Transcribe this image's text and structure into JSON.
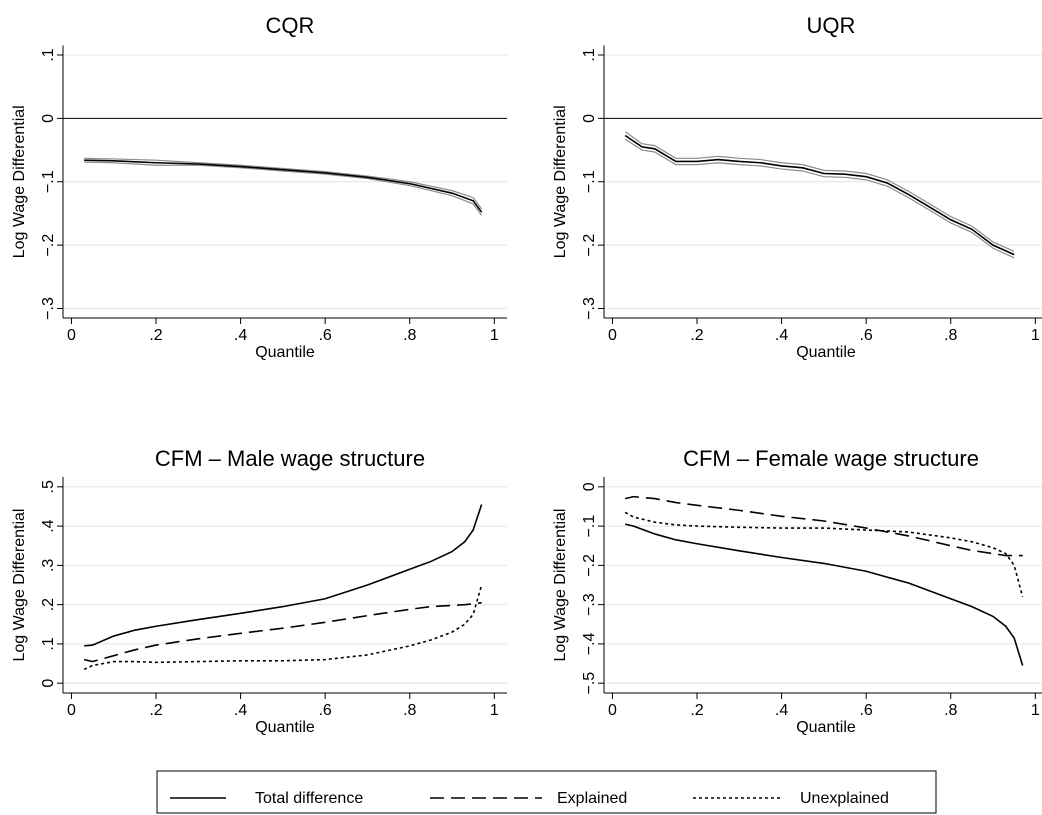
{
  "chart_data": [
    {
      "type": "line",
      "title": "CQR",
      "xlabel": "Quantile",
      "ylabel": "Log Wage Differential",
      "x": [
        0.03,
        0.1,
        0.2,
        0.3,
        0.4,
        0.5,
        0.6,
        0.7,
        0.8,
        0.9,
        0.95,
        0.97
      ],
      "series": [
        {
          "color": "#8c8c8c",
          "linestyle": "solid",
          "values": [
            -0.063,
            -0.064,
            -0.066,
            -0.07,
            -0.074,
            -0.079,
            -0.084,
            -0.091,
            -0.1,
            -0.114,
            -0.125,
            -0.143
          ]
        },
        {
          "color": "#8c8c8c",
          "linestyle": "solid",
          "values": [
            -0.069,
            -0.07,
            -0.074,
            -0.074,
            -0.078,
            -0.083,
            -0.088,
            -0.095,
            -0.106,
            -0.122,
            -0.135,
            -0.153
          ]
        },
        {
          "color": "#000000",
          "linestyle": "solid",
          "values": [
            -0.066,
            -0.067,
            -0.07,
            -0.072,
            -0.076,
            -0.081,
            -0.086,
            -0.093,
            -0.103,
            -0.118,
            -0.13,
            -0.148
          ]
        }
      ],
      "xlim": [
        -0.02,
        1.03
      ],
      "ylim": [
        -0.315,
        0.115
      ],
      "xticks": [
        0,
        {
          "value": 0.2,
          "label": ".2"
        },
        {
          "value": 0.4,
          "label": ".4"
        },
        {
          "value": 0.6,
          "label": ".6"
        },
        {
          "value": 0.8,
          "label": ".8"
        },
        1
      ],
      "yticks": [
        {
          "value": -0.3,
          "label": "−.3"
        },
        {
          "value": -0.2,
          "label": "−.2"
        },
        {
          "value": -0.1,
          "label": "−.1"
        },
        0,
        {
          "value": 0.1,
          "label": ".1"
        }
      ],
      "hline": 0,
      "grid": true
    },
    {
      "type": "line",
      "title": "UQR",
      "xlabel": "Quantile",
      "ylabel": "Log Wage Differential",
      "x": [
        0.03,
        0.07,
        0.1,
        0.15,
        0.2,
        0.25,
        0.3,
        0.35,
        0.4,
        0.45,
        0.5,
        0.55,
        0.6,
        0.65,
        0.7,
        0.75,
        0.8,
        0.85,
        0.9,
        0.95
      ],
      "series": [
        {
          "color": "#8c8c8c",
          "linestyle": "solid",
          "values": [
            -0.021,
            -0.04,
            -0.043,
            -0.063,
            -0.063,
            -0.06,
            -0.063,
            -0.065,
            -0.07,
            -0.073,
            -0.082,
            -0.083,
            -0.087,
            -0.097,
            -0.115,
            -0.135,
            -0.155,
            -0.17,
            -0.195,
            -0.21
          ]
        },
        {
          "color": "#8c8c8c",
          "linestyle": "solid",
          "values": [
            -0.033,
            -0.05,
            -0.053,
            -0.073,
            -0.073,
            -0.07,
            -0.073,
            -0.075,
            -0.08,
            -0.083,
            -0.092,
            -0.093,
            -0.097,
            -0.107,
            -0.125,
            -0.145,
            -0.165,
            -0.18,
            -0.205,
            -0.22
          ]
        },
        {
          "color": "#000000",
          "linestyle": "solid",
          "values": [
            -0.027,
            -0.045,
            -0.048,
            -0.068,
            -0.068,
            -0.065,
            -0.068,
            -0.07,
            -0.075,
            -0.078,
            -0.087,
            -0.088,
            -0.092,
            -0.102,
            -0.12,
            -0.14,
            -0.16,
            -0.175,
            -0.2,
            -0.215
          ]
        }
      ],
      "xlim": [
        -0.02,
        1.03
      ],
      "ylim": [
        -0.315,
        0.115
      ],
      "xticks": [
        0,
        {
          "value": 0.2,
          "label": ".2"
        },
        {
          "value": 0.4,
          "label": ".4"
        },
        {
          "value": 0.6,
          "label": ".6"
        },
        {
          "value": 0.8,
          "label": ".8"
        },
        1
      ],
      "yticks": [
        {
          "value": -0.3,
          "label": "−.3"
        },
        {
          "value": -0.2,
          "label": "−.2"
        },
        {
          "value": -0.1,
          "label": "−.1"
        },
        0,
        {
          "value": 0.1,
          "label": ".1"
        }
      ],
      "hline": 0,
      "grid": true
    },
    {
      "type": "line",
      "title": "CFM – Male wage structure",
      "xlabel": "Quantile",
      "ylabel": "Log Wage Differential",
      "x": [
        0.03,
        0.05,
        0.1,
        0.15,
        0.2,
        0.3,
        0.4,
        0.5,
        0.6,
        0.7,
        0.8,
        0.85,
        0.9,
        0.93,
        0.95,
        0.97
      ],
      "series": [
        {
          "name": "Total difference",
          "color": "#000000",
          "linestyle": "solid",
          "values": [
            0.095,
            0.097,
            0.12,
            0.135,
            0.145,
            0.162,
            0.178,
            0.195,
            0.215,
            0.25,
            0.29,
            0.31,
            0.335,
            0.36,
            0.39,
            0.455
          ]
        },
        {
          "name": "Explained",
          "color": "#000000",
          "linestyle": "dashed",
          "values": [
            0.06,
            0.055,
            0.07,
            0.085,
            0.097,
            0.113,
            0.127,
            0.14,
            0.155,
            0.172,
            0.188,
            0.195,
            0.198,
            0.2,
            0.202,
            0.205
          ]
        },
        {
          "name": "Unexplained",
          "color": "#000000",
          "linestyle": "dotted",
          "values": [
            0.035,
            0.045,
            0.055,
            0.055,
            0.053,
            0.055,
            0.057,
            0.057,
            0.06,
            0.072,
            0.095,
            0.11,
            0.13,
            0.15,
            0.175,
            0.25
          ]
        }
      ],
      "xlim": [
        -0.02,
        1.03
      ],
      "ylim": [
        -0.025,
        0.525
      ],
      "xticks": [
        0,
        {
          "value": 0.2,
          "label": ".2"
        },
        {
          "value": 0.4,
          "label": ".4"
        },
        {
          "value": 0.6,
          "label": ".6"
        },
        {
          "value": 0.8,
          "label": ".8"
        },
        1
      ],
      "yticks": [
        0,
        {
          "value": 0.1,
          "label": ".1"
        },
        {
          "value": 0.2,
          "label": ".2"
        },
        {
          "value": 0.3,
          "label": ".3"
        },
        {
          "value": 0.4,
          "label": ".4"
        },
        {
          "value": 0.5,
          "label": ".5"
        }
      ],
      "grid": true,
      "legend": "bottom"
    },
    {
      "type": "line",
      "title": "CFM – Female wage structure",
      "xlabel": "Quantile",
      "ylabel": "Log Wage Differential",
      "x": [
        0.03,
        0.05,
        0.1,
        0.15,
        0.2,
        0.3,
        0.4,
        0.5,
        0.6,
        0.7,
        0.8,
        0.85,
        0.9,
        0.93,
        0.95,
        0.97
      ],
      "series": [
        {
          "name": "Total difference",
          "color": "#000000",
          "linestyle": "solid",
          "values": [
            -0.095,
            -0.1,
            -0.12,
            -0.135,
            -0.145,
            -0.163,
            -0.18,
            -0.195,
            -0.215,
            -0.245,
            -0.285,
            -0.305,
            -0.33,
            -0.355,
            -0.385,
            -0.455
          ]
        },
        {
          "name": "Explained",
          "color": "#000000",
          "linestyle": "dashed",
          "values": [
            -0.03,
            -0.025,
            -0.03,
            -0.04,
            -0.047,
            -0.06,
            -0.075,
            -0.087,
            -0.105,
            -0.125,
            -0.15,
            -0.162,
            -0.17,
            -0.175,
            -0.175,
            -0.175
          ]
        },
        {
          "name": "Unexplained",
          "color": "#000000",
          "linestyle": "dotted",
          "values": [
            -0.065,
            -0.077,
            -0.09,
            -0.097,
            -0.1,
            -0.103,
            -0.105,
            -0.105,
            -0.11,
            -0.115,
            -0.13,
            -0.14,
            -0.155,
            -0.17,
            -0.2,
            -0.28
          ]
        }
      ],
      "xlim": [
        -0.02,
        1.03
      ],
      "ylim": [
        -0.525,
        0.025
      ],
      "xticks": [
        0,
        {
          "value": 0.2,
          "label": ".2"
        },
        {
          "value": 0.4,
          "label": ".4"
        },
        {
          "value": 0.6,
          "label": ".6"
        },
        {
          "value": 0.8,
          "label": ".8"
        },
        1
      ],
      "yticks": [
        {
          "value": -0.5,
          "label": "−.5"
        },
        {
          "value": -0.4,
          "label": "−.4"
        },
        {
          "value": -0.3,
          "label": "−.3"
        },
        {
          "value": -0.2,
          "label": "−.2"
        },
        {
          "value": -0.1,
          "label": "−.1"
        },
        0
      ],
      "grid": true
    }
  ]
}
